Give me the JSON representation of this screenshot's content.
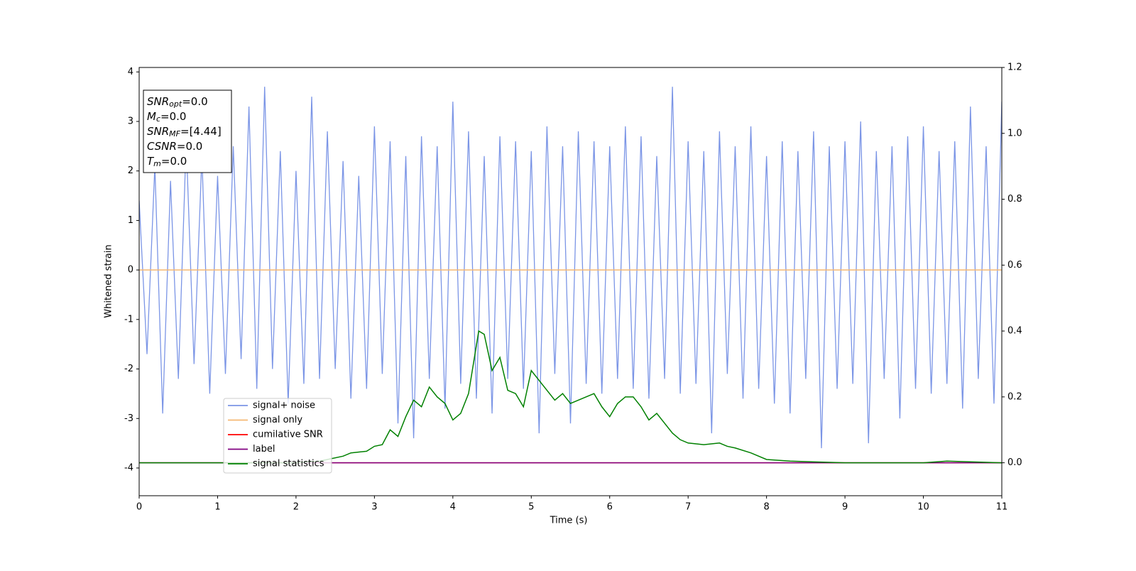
{
  "chart_data": {
    "type": "line",
    "xlabel": "Time (s)",
    "ylabel": "Whitened strain",
    "xlim": [
      0,
      11
    ],
    "ylim": [
      -4.56,
      4.09
    ],
    "y2lim": [
      -0.1,
      1.2
    ],
    "xticks": [
      0,
      1,
      2,
      3,
      4,
      5,
      6,
      7,
      8,
      9,
      10,
      11
    ],
    "yticks": [
      -4,
      -3,
      -2,
      -1,
      0,
      1,
      2,
      3,
      4
    ],
    "y2ticks": [
      {
        "value": 0,
        "label": "0.0"
      },
      0.2,
      0.4,
      0.6,
      0.8,
      {
        "value": 1,
        "label": "1.0"
      },
      1.2
    ],
    "legend": "lower left",
    "annotation": [
      {
        "main": "SNR",
        "sub": "opt",
        "rest": "=0.0"
      },
      {
        "main": "M",
        "sub": "c",
        "rest": "=0.0"
      },
      {
        "main": "SNR",
        "sub": "MF",
        "rest": "=[4.44]"
      },
      {
        "main": "CSNR",
        "rest": "=0.0"
      },
      {
        "main": "T",
        "sub": "m",
        "rest": "=0.0"
      }
    ],
    "series": [
      {
        "name": "signal+ noise",
        "color": "#7b95e6",
        "x": [
          0,
          0.1,
          0.2,
          0.3,
          0.4,
          0.5,
          0.6,
          0.7,
          0.8,
          0.9,
          1,
          1.1,
          1.2,
          1.3,
          1.4,
          1.5,
          1.6,
          1.7,
          1.8,
          1.9,
          2,
          2.1,
          2.2,
          2.3,
          2.4,
          2.5,
          2.6,
          2.7,
          2.8,
          2.9,
          3,
          3.1,
          3.2,
          3.3,
          3.4,
          3.5,
          3.6,
          3.7,
          3.8,
          3.9,
          4,
          4.1,
          4.2,
          4.3,
          4.4,
          4.5,
          4.6,
          4.7,
          4.8,
          4.9,
          5,
          5.1,
          5.2,
          5.3,
          5.4,
          5.5,
          5.6,
          5.7,
          5.8,
          5.9,
          6,
          6.1,
          6.2,
          6.3,
          6.4,
          6.5,
          6.6,
          6.7,
          6.8,
          6.9,
          7,
          7.1,
          7.2,
          7.3,
          7.4,
          7.5,
          7.6,
          7.7,
          7.8,
          7.9,
          8,
          8.1,
          8.2,
          8.3,
          8.4,
          8.5,
          8.6,
          8.7,
          8.8,
          8.9,
          9,
          9.1,
          9.2,
          9.3,
          9.4,
          9.5,
          9.6,
          9.7,
          9.8,
          9.9,
          10,
          10.1,
          10.2,
          10.3,
          10.4,
          10.5,
          10.6,
          10.7,
          10.8,
          10.9,
          11
        ],
        "values": [
          1.4,
          -1.7,
          2.1,
          -2.9,
          1.8,
          -2.2,
          2.6,
          -1.9,
          2.3,
          -2.5,
          1.9,
          -2.1,
          2.5,
          -1.8,
          3.3,
          -2.4,
          3.7,
          -2.0,
          2.4,
          -2.7,
          2.0,
          -2.3,
          3.5,
          -2.2,
          2.8,
          -2.0,
          2.2,
          -2.6,
          1.9,
          -2.4,
          2.9,
          -2.1,
          2.6,
          -3.1,
          2.3,
          -3.4,
          2.7,
          -2.2,
          2.5,
          -2.8,
          3.4,
          -2.3,
          2.8,
          -2.6,
          2.3,
          -2.9,
          2.7,
          -2.2,
          2.6,
          -2.4,
          2.4,
          -3.3,
          2.9,
          -2.1,
          2.5,
          -3.1,
          2.8,
          -2.3,
          2.6,
          -2.5,
          2.5,
          -2.2,
          2.9,
          -2.4,
          2.7,
          -2.6,
          2.3,
          -2.2,
          3.7,
          -2.5,
          2.6,
          -2.3,
          2.4,
          -3.3,
          2.8,
          -2.1,
          2.5,
          -2.6,
          2.9,
          -2.4,
          2.3,
          -2.7,
          2.6,
          -2.9,
          2.4,
          -2.2,
          2.8,
          -3.6,
          2.5,
          -2.4,
          2.6,
          -2.3,
          3.0,
          -3.5,
          2.4,
          -2.2,
          2.5,
          -3.0,
          2.7,
          -2.4,
          2.9,
          -2.5,
          2.4,
          -2.3,
          2.6,
          -2.8,
          3.3,
          -2.2,
          2.5,
          -2.7,
          3.4
        ]
      },
      {
        "name": "signal only",
        "color": "#f5b872",
        "x": [
          0,
          11
        ],
        "values": [
          0,
          0
        ]
      },
      {
        "name": "cumilative SNR",
        "color": "#ff0000",
        "axis": "y2",
        "x": [
          0,
          11
        ],
        "values": [
          0,
          0
        ]
      },
      {
        "name": "label",
        "color": "#800080",
        "axis": "y2",
        "x": [
          0,
          11
        ],
        "values": [
          0,
          0
        ]
      },
      {
        "name": "signal statistics",
        "color": "#008000",
        "axis": "y2",
        "x": [
          0,
          0.5,
          1,
          1.5,
          2,
          2.3,
          2.4,
          2.6,
          2.7,
          2.9,
          3.0,
          3.1,
          3.2,
          3.3,
          3.4,
          3.5,
          3.6,
          3.7,
          3.8,
          3.9,
          4.0,
          4.1,
          4.2,
          4.33,
          4.4,
          4.5,
          4.6,
          4.7,
          4.8,
          4.9,
          5.0,
          5.1,
          5.2,
          5.3,
          5.4,
          5.5,
          5.6,
          5.7,
          5.8,
          5.9,
          6.0,
          6.1,
          6.2,
          6.3,
          6.4,
          6.5,
          6.6,
          6.7,
          6.8,
          6.9,
          7.0,
          7.2,
          7.4,
          7.5,
          7.6,
          7.8,
          8.0,
          8.3,
          9.0,
          10.0,
          10.3,
          11
        ],
        "values": [
          0.0,
          0.0,
          0.0,
          0.0,
          0.0,
          0.005,
          0.01,
          0.02,
          0.03,
          0.035,
          0.05,
          0.055,
          0.1,
          0.08,
          0.14,
          0.19,
          0.17,
          0.23,
          0.2,
          0.18,
          0.13,
          0.15,
          0.21,
          0.4,
          0.39,
          0.28,
          0.32,
          0.22,
          0.21,
          0.17,
          0.28,
          0.25,
          0.22,
          0.19,
          0.21,
          0.18,
          0.19,
          0.2,
          0.21,
          0.17,
          0.14,
          0.18,
          0.2,
          0.2,
          0.17,
          0.13,
          0.15,
          0.12,
          0.09,
          0.07,
          0.06,
          0.055,
          0.06,
          0.05,
          0.045,
          0.03,
          0.01,
          0.005,
          0.0,
          0.0,
          0.005,
          0.0
        ]
      }
    ]
  }
}
